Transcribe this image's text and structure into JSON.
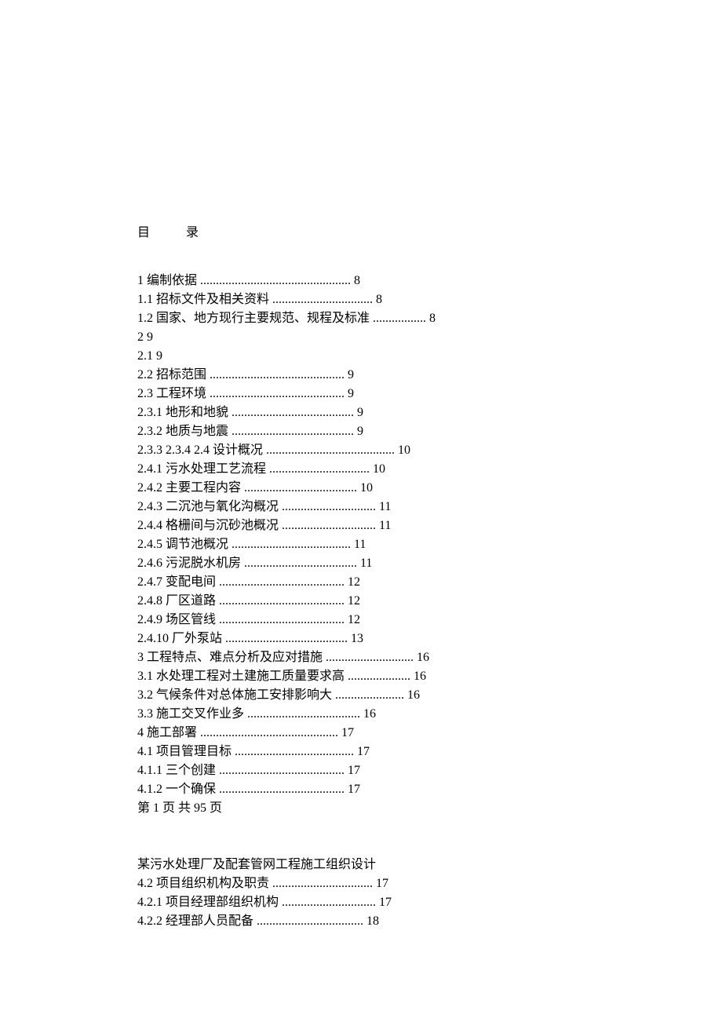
{
  "title": {
    "char1": "目",
    "char2": "录"
  },
  "toc_entries": [
    {
      "text": "1  编制依据  ................................................ 8"
    },
    {
      "text": "1.1  招标文件及相关资料  ................................ 8"
    },
    {
      "text": "1.2  国家、地方现行主要规范、规程及标准  ................. 8"
    },
    {
      "text": "2 9"
    },
    {
      "text": "2.1 9"
    },
    {
      "text": "2.2  招标范围  ........................................... 9"
    },
    {
      "text": "2.3  工程环境  ........................................... 9"
    },
    {
      "text": "2.3.1  地形和地貌  ....................................... 9"
    },
    {
      "text": "2.3.2  地质与地震  ....................................... 9"
    },
    {
      "text": "2.3.3 2.3.4 2.4  设计概况  ......................................... 10"
    },
    {
      "text": "2.4.1  污水处理工艺流程  ................................ 10"
    },
    {
      "text": "2.4.2  主要工程内容  .................................... 10"
    },
    {
      "text": "2.4.3  二沉池与氧化沟概况  .............................. 11"
    },
    {
      "text": "2.4.4  格栅间与沉砂池概况  .............................. 11"
    },
    {
      "text": "2.4.5  调节池概况  ...................................... 11"
    },
    {
      "text": "2.4.6  污泥脱水机房  .................................... 11"
    },
    {
      "text": "2.4.7  变配电间  ........................................ 12"
    },
    {
      "text": "2.4.8  厂区道路  ........................................ 12"
    },
    {
      "text": "2.4.9  场区管线  ........................................ 12"
    },
    {
      "text": "2.4.10  厂外泵站  ....................................... 13"
    },
    {
      "text": "3  工程特点、难点分析及应对措施  ............................ 16"
    },
    {
      "text": "3.1  水处理工程对土建施工质量要求高  .................... 16"
    },
    {
      "text": "3.2  气候条件对总体施工安排影响大  ...................... 16"
    },
    {
      "text": "3.3  施工交叉作业多  .................................... 16"
    },
    {
      "text": "4  施工部署  ............................................ 17"
    },
    {
      "text": "4.1  项目管理目标  ...................................... 17"
    },
    {
      "text": "4.1.1  三个创建  ........................................ 17"
    },
    {
      "text": "4.1.2  一个确保  ........................................ 17"
    }
  ],
  "page_footer": "第  1  页  共  95  页",
  "subtitle": "某污水处理厂及配套管网工程施工组织设计",
  "toc_entries_2": [
    {
      "text": "4.2  项目组织机构及职责  ................................ 17"
    },
    {
      "text": "4.2.1  项目经理部组织机构  .............................. 17"
    },
    {
      "text": "4.2.2  经理部人员配备  .................................. 18"
    }
  ]
}
